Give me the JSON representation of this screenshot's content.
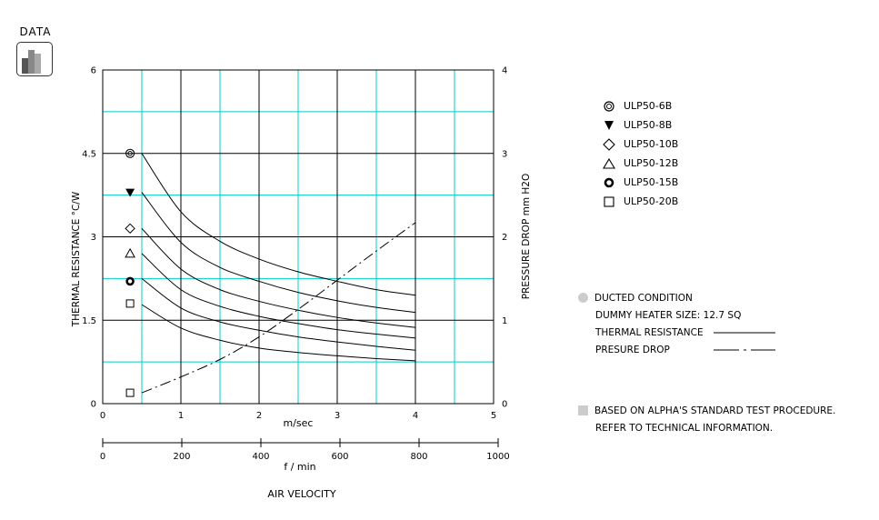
{
  "badge": {
    "label": "DATA"
  },
  "chart_data": {
    "type": "line",
    "xlabel": "m/sec",
    "x2label": "f / min",
    "footer": "AIR VELOCITY",
    "ylabel": "THERMAL  RESISTANCE  °C/W",
    "y2label": "PRESSURE  DROP   mm H2O",
    "xlim": [
      0,
      5
    ],
    "x2lim": [
      0,
      1000
    ],
    "ylim": [
      0,
      6
    ],
    "y2lim": [
      0,
      4
    ],
    "x_ticks": [
      "0",
      "1",
      "2",
      "3",
      "4",
      "5"
    ],
    "x2_ticks": [
      "0",
      "200",
      "400",
      "600",
      "800",
      "1000"
    ],
    "y_ticks": [
      "0",
      "1.5",
      "3",
      "4.5",
      "6"
    ],
    "y2_ticks": [
      "0",
      "1",
      "2",
      "3",
      "4"
    ],
    "grid": true,
    "series": [
      {
        "name": "ULP50-6B",
        "marker": "double-circle",
        "natural_convection": 4.5,
        "x": [
          0.5,
          1,
          1.5,
          2,
          2.5,
          3,
          3.5,
          4
        ],
        "y": [
          4.5,
          3.45,
          2.92,
          2.6,
          2.37,
          2.2,
          2.05,
          1.95
        ]
      },
      {
        "name": "ULP50-8B",
        "marker": "filled-triangle-down",
        "natural_convection": 3.8,
        "x": [
          0.5,
          1,
          1.5,
          2,
          2.5,
          3,
          3.5,
          4
        ],
        "y": [
          3.8,
          2.9,
          2.45,
          2.2,
          2.0,
          1.85,
          1.73,
          1.64
        ]
      },
      {
        "name": "ULP50-10B",
        "marker": "diamond",
        "natural_convection": 3.15,
        "x": [
          0.5,
          1,
          1.5,
          2,
          2.5,
          3,
          3.5,
          4
        ],
        "y": [
          3.15,
          2.42,
          2.05,
          1.84,
          1.68,
          1.55,
          1.45,
          1.37
        ]
      },
      {
        "name": "ULP50-12B",
        "marker": "triangle",
        "natural_convection": 2.7,
        "x": [
          0.5,
          1,
          1.5,
          2,
          2.5,
          3,
          3.5,
          4
        ],
        "y": [
          2.7,
          2.05,
          1.75,
          1.57,
          1.44,
          1.33,
          1.25,
          1.18
        ]
      },
      {
        "name": "ULP50-15B",
        "marker": "bold-circle",
        "natural_convection": 2.2,
        "x": [
          0.5,
          1,
          1.5,
          2,
          2.5,
          3,
          3.5,
          4
        ],
        "y": [
          2.25,
          1.72,
          1.47,
          1.32,
          1.2,
          1.11,
          1.03,
          0.96
        ]
      },
      {
        "name": "ULP50-20B",
        "marker": "square",
        "natural_convection": 1.8,
        "x": [
          0.5,
          1,
          1.5,
          2,
          2.5,
          3,
          3.5,
          4
        ],
        "y": [
          1.78,
          1.36,
          1.14,
          1.0,
          0.92,
          0.86,
          0.81,
          0.77
        ]
      }
    ],
    "pressure_drop": {
      "x": [
        0.5,
        1,
        1.5,
        2,
        2.5,
        3,
        3.5,
        4
      ],
      "y": [
        0.13,
        0.32,
        0.53,
        0.8,
        1.13,
        1.48,
        1.83,
        2.17
      ],
      "marker_start": 0.13
    }
  },
  "notes": {
    "ducted": "DUCTED CONDITION",
    "heater": "DUMMY HEATER SIZE: 12.7 SQ",
    "thermal": "THERMAL RESISTANCE",
    "pressure": "PRESURE DROP",
    "based1": "BASED ON ALPHA'S STANDARD TEST PROCEDURE.",
    "based2": "REFER TO TECHNICAL INFORMATION."
  }
}
